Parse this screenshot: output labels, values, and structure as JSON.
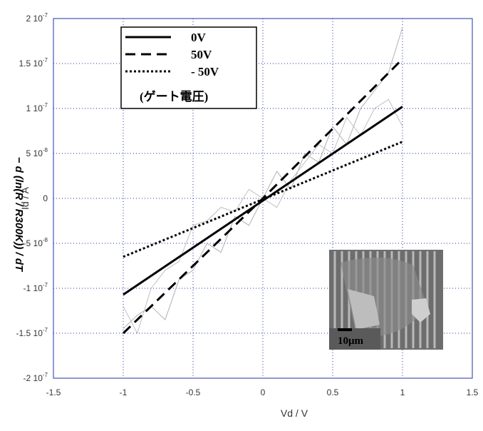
{
  "chart_data": {
    "type": "line",
    "xlabel": "Vd / V",
    "ylabel": "Id / A",
    "side_text": "− d (ln(R / R300K)) / dT",
    "inset_label": "10μm",
    "legend_title": "(ゲート電圧)",
    "xlim": [
      -1.5,
      1.5
    ],
    "xticks": [
      -1.5,
      -1,
      -0.5,
      0,
      0.5,
      1,
      1.5
    ],
    "ylim": [
      -2e-07,
      2e-07
    ],
    "yticks": [
      {
        "value": -2e-07,
        "label": "-2 10-7"
      },
      {
        "value": -1.5e-07,
        "label": "-1.5 10-7"
      },
      {
        "value": -1e-07,
        "label": "-1 10-7"
      },
      {
        "value": -5e-08,
        "label": "-5 10-8"
      },
      0,
      {
        "value": 5e-08,
        "label": "5 10-8"
      },
      {
        "value": 1e-07,
        "label": "1 10-7"
      },
      {
        "value": 1.5e-07,
        "label": "1.5 10-7"
      },
      {
        "value": 2e-07,
        "label": "2 10-7"
      }
    ],
    "grid": true,
    "series": [
      {
        "color": "#b0b0b0",
        "dash": "solid",
        "x": [
          -1,
          -0.9,
          -0.8,
          -0.7,
          -0.6,
          -0.5,
          -0.4,
          -0.3,
          -0.2,
          -0.1,
          0,
          0.1,
          0.2,
          0.3,
          0.4,
          0.5,
          0.6,
          0.7,
          0.8,
          0.9,
          1
        ],
        "values": [
          -1.45e-07,
          -1.3e-07,
          -1.2e-07,
          -1.35e-07,
          -9e-08,
          -8e-08,
          -5e-08,
          -6e-08,
          -2e-08,
          -3e-08,
          0,
          3e-08,
          1e-08,
          5e-08,
          4e-08,
          8e-08,
          6e-08,
          1e-07,
          1.2e-07,
          1.4e-07,
          1.9e-07
        ]
      },
      {
        "color": "#c0c0c0",
        "dash": "solid",
        "x": [
          -1,
          -0.9,
          -0.8,
          -0.7,
          -0.6,
          -0.5,
          -0.4,
          -0.3,
          -0.2,
          -0.1,
          0,
          0.1,
          0.2,
          0.3,
          0.4,
          0.5,
          0.6,
          0.7,
          0.8,
          0.9,
          1
        ],
        "values": [
          -1.2e-07,
          -1.5e-07,
          -1e-07,
          -8e-08,
          -7e-08,
          -3e-08,
          -2.5e-08,
          -1e-08,
          -1.5e-08,
          1e-08,
          0,
          -1e-08,
          2e-08,
          4e-08,
          6e-08,
          5e-08,
          9e-08,
          7e-08,
          1e-07,
          1.1e-07,
          8e-08
        ]
      },
      {
        "name": "0V",
        "color": "#000000",
        "dash": "solid",
        "x": [
          -1,
          1
        ],
        "values": [
          -1.07e-07,
          1.02e-07
        ]
      },
      {
        "name": "50V",
        "color": "#000000",
        "dash": "dashed",
        "x": [
          -1,
          0,
          1
        ],
        "values": [
          -1.5e-07,
          0,
          1.55e-07
        ]
      },
      {
        "name": "- 50V",
        "color": "#000000",
        "dash": "dotted",
        "x": [
          -1,
          1
        ],
        "values": [
          -6.5e-08,
          6.3e-08
        ]
      }
    ]
  }
}
